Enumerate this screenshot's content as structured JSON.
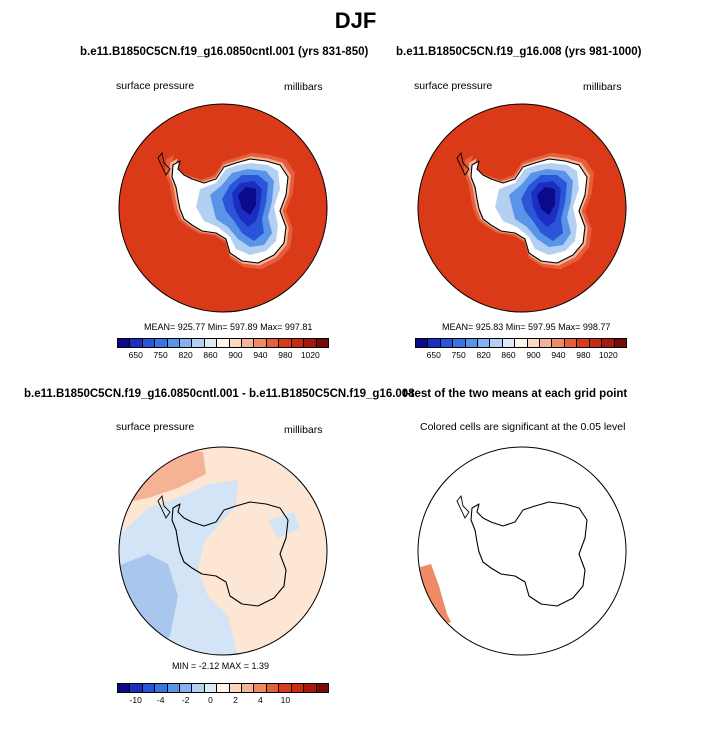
{
  "title": "DJF",
  "panels": {
    "p1": {
      "title": "b.e11.B1850C5CN.f19_g16.0850cntl.001 (yrs 831-850)",
      "left_label": "surface pressure",
      "right_label": "millibars",
      "stats": "MEAN= 925.77  Min= 597.89  Max= 997.81"
    },
    "p2": {
      "title": "b.e11.B1850C5CN.f19_g16.008 (yrs 981-1000)",
      "left_label": "surface pressure",
      "right_label": "millibars",
      "stats": "MEAN= 925.83  Min= 597.95  Max= 998.77"
    },
    "p3": {
      "title": "b.e11.B1850C5CN.f19_g16.0850cntl.001 - b.e11.B1850C5CN.f19_g16.008",
      "left_label": "surface pressure",
      "right_label": "millibars",
      "stats": "MIN =  -2.12 MAX =   1.39"
    },
    "p4": {
      "title": "t-test of the two means at each grid point",
      "label": "Colored cells are significant at the 0.05 level"
    }
  },
  "colorbars": {
    "abs": {
      "colors": [
        "#0a0a8a",
        "#1a2ec0",
        "#2a55d8",
        "#3b74e0",
        "#5a94e8",
        "#85b2ee",
        "#b3d0f3",
        "#dceaf8",
        "#fff5ec",
        "#fbd8c0",
        "#f5b294",
        "#ef8a66",
        "#e65f3c",
        "#db3a18",
        "#c82a12",
        "#a51a0c",
        "#7a0a06"
      ],
      "ticks": [
        {
          "label": "650",
          "index": 1
        },
        {
          "label": "750",
          "index": 3
        },
        {
          "label": "820",
          "index": 5
        },
        {
          "label": "860",
          "index": 7
        },
        {
          "label": "900",
          "index": 9
        },
        {
          "label": "940",
          "index": 11
        },
        {
          "label": "980",
          "index": 13
        },
        {
          "label": "1020",
          "index": 15
        }
      ]
    },
    "diff": {
      "colors": [
        "#0a0a8a",
        "#1a2ec0",
        "#2a55d8",
        "#3b74e0",
        "#5a94e8",
        "#85b2ee",
        "#b3d0f3",
        "#dceaf8",
        "#fff5ec",
        "#fbd8c0",
        "#f5b294",
        "#ef8a66",
        "#e65f3c",
        "#db3a18",
        "#c82a12",
        "#a51a0c",
        "#7a0a06"
      ],
      "ticks": [
        {
          "label": "-10",
          "index": 1
        },
        {
          "label": "-4",
          "index": 3
        },
        {
          "label": "-2",
          "index": 5
        },
        {
          "label": "0",
          "index": 7
        },
        {
          "label": "2",
          "index": 9
        },
        {
          "label": "4",
          "index": 11
        },
        {
          "label": "10",
          "index": 13
        }
      ]
    }
  },
  "map_colors": {
    "ocean_high": "#db3a18",
    "ring1": "#e65f3c",
    "ring2": "#f5b294",
    "pale": "#fbe3d2",
    "white": "#ffffff",
    "blue1": "#b3d0f3",
    "blue2": "#5a94e8",
    "blue3": "#2a55d8",
    "blue4": "#1a2ec0",
    "blue5": "#0a0a8a",
    "diff_base": "#fde6d4",
    "diff_pink": "#f5b294",
    "diff_lightblue": "#d4e4f7",
    "diff_blue": "#a9c7ee",
    "sig": "#ef8a66"
  }
}
